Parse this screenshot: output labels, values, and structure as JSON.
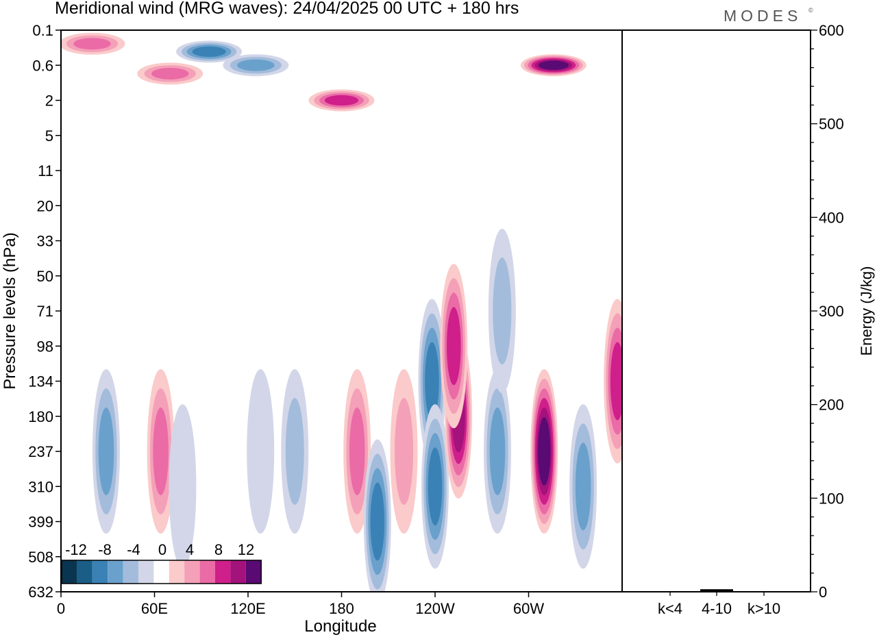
{
  "header": {
    "title": "Meridional wind (MRG waves):  24/04/2025  00 UTC  + 180 hrs",
    "brand": "MODES",
    "brand_mark": "©"
  },
  "chart_data": {
    "type": "heatmap",
    "title": "Meridional wind (MRG waves):  24/04/2025  00 UTC  + 180 hrs",
    "main": {
      "xlabel": "Longitude",
      "ylabel": "Pressure levels (hPa)",
      "x_ticks": [
        "0",
        "60E",
        "120E",
        "180",
        "120W",
        "60W"
      ],
      "y_ticks": [
        "0.1",
        "0.6",
        "2",
        "5",
        "11",
        "20",
        "33",
        "50",
        "71",
        "98",
        "134",
        "180",
        "237",
        "310",
        "399",
        "508",
        "632"
      ],
      "colorbar": {
        "labels": [
          "-12",
          "-8",
          "-4",
          "0",
          "4",
          "8",
          "12"
        ],
        "levels": [
          -14,
          -12,
          -10,
          -8,
          -6,
          -4,
          -2,
          2,
          4,
          6,
          8,
          10,
          12,
          14
        ],
        "colors": [
          "#0a3550",
          "#1a5e87",
          "#3a82b5",
          "#6aa0cc",
          "#a3bcdc",
          "#d2d6e8",
          "#ffffff",
          "#fbcaca",
          "#f4a0b8",
          "#ea6ba6",
          "#cf1f8a",
          "#a4127b",
          "#5a0a73"
        ]
      },
      "features": [
        {
          "lon": 29,
          "p": 237,
          "v": -6
        },
        {
          "lon": 64,
          "p": 237,
          "v": 6
        },
        {
          "lon": 78,
          "p": 310,
          "v": -2
        },
        {
          "lon": 128,
          "p": 237,
          "v": -2
        },
        {
          "lon": 150,
          "p": 237,
          "v": -4
        },
        {
          "lon": 190,
          "p": 237,
          "v": 6
        },
        {
          "lon": 203,
          "p": 399,
          "v": -8
        },
        {
          "lon": 220,
          "p": 237,
          "v": 4
        },
        {
          "lon": 238,
          "p": 134,
          "v": -8
        },
        {
          "lon": 240,
          "p": 310,
          "v": -8
        },
        {
          "lon": 255,
          "p": 180,
          "v": 10
        },
        {
          "lon": 252,
          "p": 98,
          "v": 8
        },
        {
          "lon": 280,
          "p": 237,
          "v": -6
        },
        {
          "lon": 283,
          "p": 71,
          "v": -4
        },
        {
          "lon": 310,
          "p": 237,
          "v": 12
        },
        {
          "lon": 335,
          "p": 310,
          "v": -6
        },
        {
          "lon": 357,
          "p": 134,
          "v": 8
        },
        {
          "lon": 316,
          "p": 0.6,
          "v": 12
        },
        {
          "lon": 95,
          "p": 0.3,
          "v": -8
        },
        {
          "lon": 125,
          "p": 0.6,
          "v": -6
        },
        {
          "lon": 180,
          "p": 2,
          "v": 8
        },
        {
          "lon": 70,
          "p": 0.8,
          "v": 6
        },
        {
          "lon": 20,
          "p": 0.2,
          "v": 6
        }
      ]
    },
    "energy": {
      "ylabel": "Energy (J/kg)",
      "ylim": [
        0,
        600
      ],
      "y_ticks": [
        "0",
        "100",
        "200",
        "300",
        "400",
        "500",
        "600"
      ],
      "categories": [
        "k<4",
        "4-10",
        "k>10"
      ],
      "values": [
        0,
        2,
        0
      ]
    }
  }
}
